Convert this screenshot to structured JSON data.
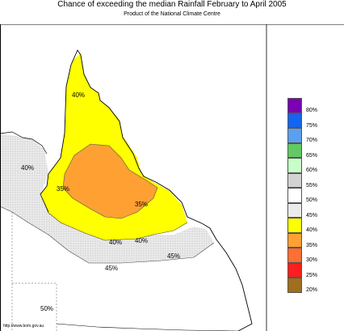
{
  "title": "Chance of exceeding the median Rainfall February to April 2005",
  "subtitle": "Product of the National Climate Centre",
  "credit": "http://www.bom.gov.au",
  "legend": [
    {
      "label": "80%",
      "color": "#7a00b4"
    },
    {
      "label": "75%",
      "color": "#1464f0"
    },
    {
      "label": "70%",
      "color": "#5aa0f0"
    },
    {
      "label": "65%",
      "color": "#64c864"
    },
    {
      "label": "60%",
      "color": "#c8ffc8"
    },
    {
      "label": "55%",
      "color": "#d2d2d2"
    },
    {
      "label": "50%",
      "color": "#ffffff"
    },
    {
      "label": "45%",
      "color": "#ebebeb"
    },
    {
      "label": "40%",
      "color": "#ffff00"
    },
    {
      "label": "35%",
      "color": "#ffa032"
    },
    {
      "label": "30%",
      "color": "#ff6e32"
    },
    {
      "label": "25%",
      "color": "#ff1e1e"
    },
    {
      "label": "20%",
      "color": "#a06e1e"
    }
  ],
  "contour_labels": {
    "l40_north": "40%",
    "l40_west": "40%",
    "l35_west": "35%",
    "l35_east": "35%",
    "l40_south_a": "40%",
    "l40_south_b": "40%",
    "l45_east": "45%",
    "l45_south": "45%",
    "l50_sw": "50%"
  },
  "colors": {
    "land_50": "#ffffff",
    "zone_45": "#ebebeb",
    "zone_40": "#ffff00",
    "zone_35": "#ffa032",
    "outline": "#000000",
    "border": "#888888"
  }
}
